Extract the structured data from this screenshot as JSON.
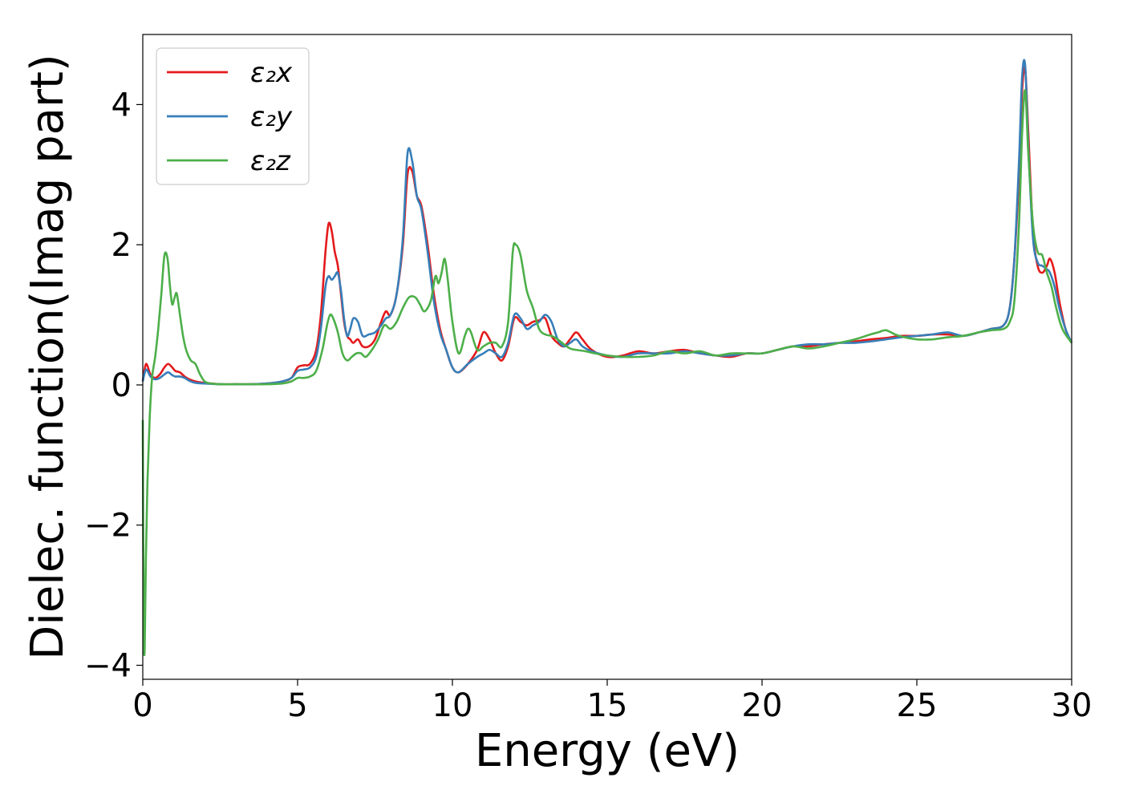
{
  "chart_data": {
    "type": "line",
    "title": "",
    "xlabel": "Energy (eV)",
    "ylabel": "Dielec. function(Imag part)",
    "xlim": [
      0,
      30
    ],
    "ylim": [
      -4.2,
      5.0
    ],
    "xticks": [
      0,
      5,
      10,
      15,
      20,
      25,
      30
    ],
    "yticks": [
      -4,
      -2,
      0,
      2,
      4
    ],
    "xtick_labels": [
      "0",
      "5",
      "10",
      "15",
      "20",
      "25",
      "30"
    ],
    "ytick_labels": [
      "−4",
      "−2",
      "0",
      "2",
      "4"
    ],
    "grid": false,
    "legend_position": "upper-left",
    "series": [
      {
        "name": "ε₂x",
        "color": "#e41a1c",
        "x": [
          0.0,
          0.05,
          0.12,
          0.25,
          0.4,
          0.55,
          0.7,
          0.82,
          0.95,
          1.05,
          1.2,
          1.35,
          1.5,
          1.7,
          2.0,
          2.5,
          3.0,
          3.5,
          4.0,
          4.5,
          4.8,
          5.0,
          5.2,
          5.4,
          5.6,
          5.75,
          5.9,
          6.0,
          6.1,
          6.2,
          6.3,
          6.4,
          6.5,
          6.6,
          6.7,
          6.8,
          6.95,
          7.1,
          7.3,
          7.5,
          7.7,
          7.85,
          8.0,
          8.2,
          8.4,
          8.55,
          8.7,
          8.85,
          9.0,
          9.2,
          9.4,
          9.6,
          9.8,
          10.0,
          10.2,
          10.5,
          10.8,
          11.0,
          11.2,
          11.4,
          11.6,
          11.8,
          12.0,
          12.2,
          12.4,
          12.6,
          12.8,
          13.0,
          13.2,
          13.4,
          13.6,
          13.8,
          14.0,
          14.2,
          14.5,
          15.0,
          15.5,
          16.0,
          16.5,
          17.0,
          17.5,
          18.0,
          18.5,
          19.0,
          19.5,
          20.0,
          20.5,
          21.0,
          21.5,
          22.0,
          22.5,
          23.0,
          23.5,
          24.0,
          24.5,
          25.0,
          25.5,
          26.0,
          26.5,
          27.0,
          27.4,
          27.8,
          28.0,
          28.15,
          28.3,
          28.4,
          28.5,
          28.6,
          28.75,
          28.9,
          29.05,
          29.2,
          29.3,
          29.45,
          29.6,
          29.8,
          30.0
        ],
        "y": [
          0.05,
          0.2,
          0.3,
          0.15,
          0.1,
          0.15,
          0.25,
          0.3,
          0.25,
          0.2,
          0.18,
          0.12,
          0.08,
          0.05,
          0.03,
          0.01,
          0.01,
          0.01,
          0.02,
          0.05,
          0.1,
          0.25,
          0.28,
          0.3,
          0.5,
          1.0,
          1.9,
          2.3,
          2.2,
          1.9,
          1.7,
          1.3,
          0.9,
          0.7,
          0.65,
          0.6,
          0.65,
          0.55,
          0.55,
          0.65,
          0.9,
          1.05,
          1.0,
          1.3,
          2.0,
          3.0,
          3.05,
          2.7,
          2.55,
          2.0,
          1.3,
          0.8,
          0.5,
          0.25,
          0.18,
          0.3,
          0.5,
          0.75,
          0.65,
          0.45,
          0.35,
          0.55,
          0.95,
          0.9,
          0.85,
          0.9,
          0.92,
          0.95,
          0.7,
          0.6,
          0.55,
          0.65,
          0.75,
          0.65,
          0.5,
          0.4,
          0.42,
          0.48,
          0.45,
          0.48,
          0.5,
          0.45,
          0.42,
          0.4,
          0.45,
          0.45,
          0.5,
          0.55,
          0.55,
          0.58,
          0.6,
          0.62,
          0.65,
          0.67,
          0.7,
          0.7,
          0.72,
          0.72,
          0.7,
          0.75,
          0.8,
          0.85,
          1.1,
          1.8,
          3.0,
          4.2,
          4.5,
          3.6,
          2.2,
          1.7,
          1.6,
          1.7,
          1.8,
          1.6,
          1.2,
          0.8,
          0.6
        ]
      },
      {
        "name": "ε₂y",
        "color": "#377eb8",
        "x": [
          0.0,
          0.05,
          0.12,
          0.25,
          0.4,
          0.55,
          0.7,
          0.82,
          0.95,
          1.05,
          1.2,
          1.35,
          1.5,
          1.7,
          2.0,
          2.5,
          3.0,
          3.5,
          4.0,
          4.5,
          4.8,
          5.0,
          5.2,
          5.4,
          5.6,
          5.75,
          5.9,
          6.0,
          6.1,
          6.2,
          6.3,
          6.4,
          6.5,
          6.6,
          6.7,
          6.8,
          6.95,
          7.1,
          7.3,
          7.5,
          7.7,
          7.85,
          8.0,
          8.2,
          8.4,
          8.55,
          8.7,
          8.85,
          9.0,
          9.2,
          9.4,
          9.6,
          9.8,
          10.0,
          10.2,
          10.5,
          10.8,
          11.0,
          11.2,
          11.4,
          11.6,
          11.8,
          12.0,
          12.2,
          12.4,
          12.6,
          12.8,
          13.0,
          13.2,
          13.4,
          13.6,
          13.8,
          14.0,
          14.2,
          14.5,
          15.0,
          15.5,
          16.0,
          16.5,
          17.0,
          17.5,
          18.0,
          18.5,
          19.0,
          19.5,
          20.0,
          20.5,
          21.0,
          21.5,
          22.0,
          22.5,
          23.0,
          23.5,
          24.0,
          24.5,
          25.0,
          25.5,
          26.0,
          26.5,
          27.0,
          27.4,
          27.8,
          28.0,
          28.15,
          28.3,
          28.4,
          28.5,
          28.6,
          28.75,
          28.9,
          29.05,
          29.2,
          29.3,
          29.45,
          29.6,
          29.8,
          30.0
        ],
        "y": [
          0.05,
          0.15,
          0.22,
          0.12,
          0.08,
          0.1,
          0.15,
          0.18,
          0.14,
          0.12,
          0.12,
          0.1,
          0.06,
          0.03,
          0.02,
          0.01,
          0.01,
          0.01,
          0.02,
          0.05,
          0.1,
          0.2,
          0.22,
          0.25,
          0.4,
          0.8,
          1.4,
          1.55,
          1.5,
          1.55,
          1.6,
          1.35,
          0.95,
          0.7,
          0.8,
          0.95,
          0.9,
          0.7,
          0.72,
          0.75,
          0.85,
          0.95,
          1.0,
          1.3,
          2.1,
          3.3,
          3.2,
          2.7,
          2.5,
          1.9,
          1.2,
          0.75,
          0.5,
          0.25,
          0.18,
          0.3,
          0.4,
          0.45,
          0.5,
          0.45,
          0.4,
          0.6,
          1.0,
          0.95,
          0.8,
          0.85,
          0.9,
          1.0,
          0.9,
          0.65,
          0.55,
          0.6,
          0.65,
          0.55,
          0.48,
          0.42,
          0.4,
          0.45,
          0.45,
          0.45,
          0.48,
          0.45,
          0.42,
          0.42,
          0.45,
          0.45,
          0.5,
          0.55,
          0.58,
          0.58,
          0.6,
          0.6,
          0.62,
          0.65,
          0.68,
          0.7,
          0.72,
          0.75,
          0.7,
          0.75,
          0.8,
          0.85,
          1.1,
          1.8,
          3.2,
          4.4,
          4.55,
          3.4,
          2.1,
          1.75,
          1.7,
          1.65,
          1.6,
          1.4,
          1.1,
          0.8,
          0.6
        ]
      },
      {
        "name": "ε₂z",
        "color": "#4daf4a",
        "x": [
          0.0,
          0.03,
          0.06,
          0.1,
          0.15,
          0.22,
          0.3,
          0.4,
          0.5,
          0.6,
          0.7,
          0.8,
          0.88,
          0.95,
          1.03,
          1.1,
          1.2,
          1.3,
          1.4,
          1.55,
          1.7,
          1.85,
          2.0,
          2.2,
          2.5,
          3.0,
          3.5,
          4.0,
          4.5,
          4.8,
          5.0,
          5.2,
          5.4,
          5.6,
          5.8,
          5.95,
          6.05,
          6.15,
          6.3,
          6.45,
          6.6,
          6.75,
          6.9,
          7.05,
          7.2,
          7.4,
          7.6,
          7.8,
          8.0,
          8.2,
          8.4,
          8.6,
          8.8,
          8.95,
          9.1,
          9.3,
          9.45,
          9.55,
          9.65,
          9.75,
          9.85,
          10.0,
          10.2,
          10.4,
          10.5,
          10.6,
          10.8,
          11.0,
          11.2,
          11.4,
          11.6,
          11.8,
          11.95,
          12.05,
          12.2,
          12.4,
          12.6,
          12.8,
          13.0,
          13.2,
          13.4,
          13.6,
          13.8,
          14.0,
          14.3,
          14.6,
          15.0,
          15.5,
          16.0,
          16.5,
          17.0,
          17.5,
          18.0,
          18.5,
          19.0,
          19.5,
          20.0,
          20.5,
          21.0,
          21.5,
          22.0,
          22.5,
          23.0,
          23.5,
          23.75,
          24.0,
          24.3,
          24.6,
          25.0,
          25.5,
          26.0,
          26.5,
          27.0,
          27.4,
          27.8,
          28.0,
          28.15,
          28.3,
          28.4,
          28.5,
          28.6,
          28.75,
          28.9,
          29.05,
          29.2,
          29.35,
          29.5,
          29.7,
          30.0
        ],
        "y": [
          -0.5,
          -3.3,
          -3.8,
          -2.5,
          -1.4,
          -0.5,
          0.1,
          0.4,
          0.8,
          1.3,
          1.85,
          1.8,
          1.4,
          1.15,
          1.25,
          1.3,
          1.0,
          0.7,
          0.5,
          0.35,
          0.3,
          0.15,
          0.05,
          0.02,
          0.01,
          0.01,
          0.01,
          0.01,
          0.02,
          0.05,
          0.1,
          0.1,
          0.12,
          0.2,
          0.5,
          0.85,
          1.0,
          0.95,
          0.75,
          0.45,
          0.35,
          0.4,
          0.45,
          0.45,
          0.4,
          0.5,
          0.65,
          0.85,
          0.8,
          0.9,
          1.1,
          1.25,
          1.25,
          1.15,
          1.05,
          1.2,
          1.55,
          1.45,
          1.6,
          1.8,
          1.5,
          0.9,
          0.45,
          0.7,
          0.8,
          0.75,
          0.5,
          0.55,
          0.6,
          0.6,
          0.55,
          0.9,
          1.9,
          2.0,
          1.85,
          1.35,
          1.1,
          0.8,
          0.72,
          0.7,
          0.65,
          0.58,
          0.52,
          0.5,
          0.48,
          0.45,
          0.42,
          0.4,
          0.4,
          0.42,
          0.48,
          0.45,
          0.48,
          0.42,
          0.45,
          0.45,
          0.45,
          0.5,
          0.55,
          0.52,
          0.55,
          0.6,
          0.65,
          0.72,
          0.75,
          0.78,
          0.72,
          0.68,
          0.65,
          0.65,
          0.68,
          0.7,
          0.75,
          0.78,
          0.8,
          0.9,
          1.2,
          2.3,
          3.6,
          4.2,
          3.3,
          2.3,
          1.9,
          1.85,
          1.6,
          1.4,
          1.1,
          0.8,
          0.6
        ]
      }
    ]
  }
}
